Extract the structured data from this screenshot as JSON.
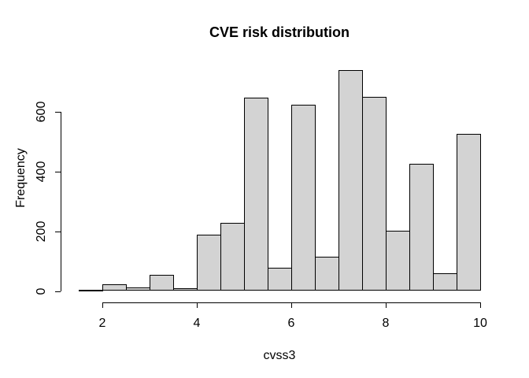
{
  "chart_data": {
    "type": "bar",
    "subtype": "histogram",
    "title": "CVE risk distribution",
    "xlabel": "cvss3",
    "ylabel": "Frequency",
    "bin_start": 1.5,
    "bin_width": 0.5,
    "bin_edges": [
      1.5,
      2,
      2.5,
      3,
      3.5,
      4,
      4.5,
      5,
      5.5,
      6,
      6.5,
      7,
      7.5,
      8,
      8.5,
      9,
      9.5,
      10
    ],
    "counts": [
      3,
      22,
      11,
      53,
      9,
      188,
      227,
      648,
      77,
      624,
      115,
      740,
      650,
      202,
      426,
      58,
      525
    ],
    "x_ticks": [
      2,
      4,
      6,
      8,
      10
    ],
    "y_ticks": [
      0,
      200,
      400,
      600
    ],
    "xlim": [
      1.5,
      10
    ],
    "ylim": [
      0,
      740
    ],
    "grid": false,
    "legend": false,
    "bar_fill": "#D3D3D3",
    "bar_border": "#000000",
    "text_color": "#000000",
    "background": "#FFFFFF"
  }
}
